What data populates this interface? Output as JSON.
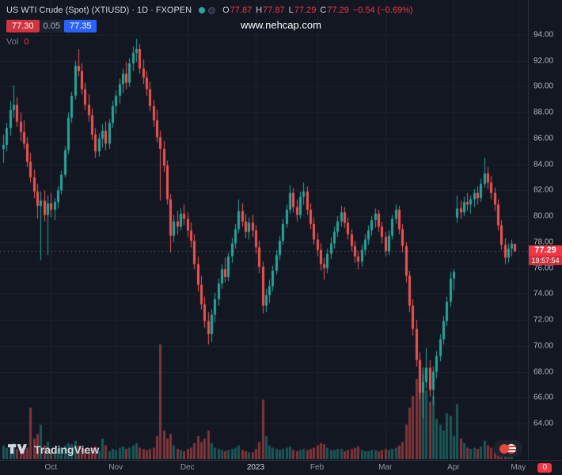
{
  "legend": {
    "title": "US WTI Crude (Spot) (XTIUSD) · 1D · FXOPEN",
    "o_label": "O",
    "o_value": "77.87",
    "h_label": "H",
    "h_value": "77.87",
    "l_label": "L",
    "l_value": "77.29",
    "c_label": "C",
    "c_value": "77.29",
    "change": "−0.54 (−0.69%)",
    "bid": "77.30",
    "spread": "0.05",
    "ask": "77.35",
    "vol_label": "Vol",
    "vol_value": "0"
  },
  "watermark": "www.nehcap.com",
  "price_label": {
    "value": "77.29",
    "countdown": "19:57:54"
  },
  "footer": {
    "logo_text": "TradingView",
    "events_badge": "0"
  },
  "colors": {
    "bg": "#131722",
    "grid": "#1e222d",
    "up": "#26a69a",
    "down": "#ef5350",
    "accent_red": "#f23645",
    "ask_blue": "#2962ff",
    "bid_red": "#cf3440",
    "axis_text": "#b2b5be",
    "title_text": "#d1d4dc",
    "watermark": "#ffffff"
  },
  "chart_data": {
    "type": "candlestick",
    "title": "US WTI Crude (Spot) (XTIUSD)",
    "interval": "1D",
    "exchange": "FXOPEN",
    "last_price": 77.29,
    "y_axis": {
      "max": 94,
      "min": 64,
      "tick_step": 2
    },
    "y_ticks": [
      "94.00",
      "92.00",
      "90.00",
      "88.00",
      "86.00",
      "84.00",
      "82.00",
      "80.00",
      "78.00",
      "76.00",
      "74.00",
      "72.00",
      "70.00",
      "68.00",
      "66.00",
      "64.00"
    ],
    "x_ticks": [
      {
        "label": "Oct",
        "index": 14,
        "major": false
      },
      {
        "label": "Nov",
        "index": 33,
        "major": false
      },
      {
        "label": "Dec",
        "index": 54,
        "major": false
      },
      {
        "label": "2023",
        "index": 74,
        "major": true
      },
      {
        "label": "Feb",
        "index": 92,
        "major": false
      },
      {
        "label": "Mar",
        "index": 112,
        "major": false
      },
      {
        "label": "Apr",
        "index": 132,
        "major": false
      },
      {
        "label": "May",
        "index": 151,
        "major": false
      }
    ],
    "candles_format": [
      "open",
      "high",
      "low",
      "close",
      "volume"
    ],
    "candles": [
      [
        85.2,
        86.3,
        84.1,
        85.5,
        12
      ],
      [
        85.5,
        87.2,
        85.0,
        86.8,
        10
      ],
      [
        86.8,
        88.9,
        86.2,
        88.2,
        11
      ],
      [
        88.2,
        90.1,
        87.6,
        88.6,
        14
      ],
      [
        88.6,
        89.2,
        86.9,
        87.3,
        9
      ],
      [
        87.3,
        88.0,
        85.8,
        86.5,
        8
      ],
      [
        86.5,
        87.4,
        85.2,
        85.6,
        7
      ],
      [
        85.6,
        86.1,
        83.8,
        84.2,
        10
      ],
      [
        84.2,
        84.9,
        82.6,
        83.0,
        45
      ],
      [
        83.0,
        83.6,
        81.4,
        81.9,
        18
      ],
      [
        81.9,
        82.5,
        79.8,
        80.8,
        22
      ],
      [
        80.8,
        81.9,
        76.6,
        81.2,
        30
      ],
      [
        81.2,
        82.0,
        79.6,
        80.1,
        12
      ],
      [
        80.1,
        81.6,
        77.0,
        81.0,
        15
      ],
      [
        81.0,
        81.8,
        79.9,
        80.5,
        9
      ],
      [
        80.5,
        81.4,
        79.7,
        81.1,
        8
      ],
      [
        81.1,
        82.3,
        80.6,
        82.0,
        9
      ],
      [
        82.0,
        83.5,
        81.7,
        83.2,
        10
      ],
      [
        83.2,
        85.4,
        83.0,
        85.1,
        12
      ],
      [
        85.1,
        88.0,
        84.8,
        87.6,
        14
      ],
      [
        87.6,
        89.6,
        87.2,
        89.3,
        13
      ],
      [
        89.3,
        92.0,
        89.0,
        91.6,
        16
      ],
      [
        91.6,
        92.9,
        90.8,
        91.2,
        12
      ],
      [
        91.2,
        91.8,
        89.4,
        89.8,
        10
      ],
      [
        89.8,
        90.3,
        88.2,
        88.6,
        9
      ],
      [
        88.6,
        89.4,
        87.3,
        87.8,
        8
      ],
      [
        87.8,
        88.3,
        85.9,
        86.3,
        10
      ],
      [
        86.3,
        86.8,
        84.5,
        85.0,
        11
      ],
      [
        85.0,
        86.4,
        84.6,
        86.0,
        7
      ],
      [
        86.0,
        87.1,
        85.3,
        86.6,
        18
      ],
      [
        86.6,
        87.3,
        85.1,
        85.6,
        12
      ],
      [
        85.6,
        87.5,
        85.2,
        87.2,
        7
      ],
      [
        87.2,
        88.9,
        86.8,
        88.5,
        9
      ],
      [
        88.5,
        89.7,
        87.9,
        89.3,
        8
      ],
      [
        89.3,
        90.6,
        88.7,
        90.2,
        10
      ],
      [
        90.2,
        91.4,
        89.5,
        91.0,
        11
      ],
      [
        91.0,
        91.9,
        89.8,
        90.3,
        9
      ],
      [
        90.3,
        92.2,
        90.0,
        91.8,
        10
      ],
      [
        91.8,
        93.1,
        91.2,
        92.6,
        12
      ],
      [
        92.6,
        93.7,
        91.9,
        92.9,
        14
      ],
      [
        92.9,
        93.3,
        91.0,
        91.4,
        10
      ],
      [
        91.4,
        92.1,
        90.2,
        90.7,
        9
      ],
      [
        90.7,
        91.2,
        89.3,
        89.8,
        8
      ],
      [
        89.8,
        90.4,
        88.1,
        88.5,
        9
      ],
      [
        88.5,
        89.0,
        86.9,
        87.4,
        10
      ],
      [
        87.4,
        88.2,
        85.7,
        86.1,
        20
      ],
      [
        86.1,
        86.6,
        81.2,
        85.2,
        100
      ],
      [
        85.2,
        85.8,
        83.4,
        83.9,
        25
      ],
      [
        83.9,
        84.3,
        80.9,
        81.3,
        18
      ],
      [
        81.3,
        81.7,
        77.2,
        78.5,
        22
      ],
      [
        78.5,
        80.1,
        78.0,
        79.6,
        12
      ],
      [
        79.6,
        80.4,
        78.6,
        79.2,
        9
      ],
      [
        79.2,
        80.6,
        78.9,
        80.2,
        8
      ],
      [
        80.2,
        80.9,
        79.3,
        79.8,
        7
      ],
      [
        79.8,
        80.3,
        78.4,
        78.9,
        9
      ],
      [
        78.9,
        79.5,
        77.6,
        78.1,
        10
      ],
      [
        78.1,
        78.6,
        75.9,
        76.3,
        14
      ],
      [
        76.3,
        76.9,
        74.2,
        74.7,
        20
      ],
      [
        74.7,
        75.4,
        72.8,
        73.2,
        15
      ],
      [
        73.2,
        73.8,
        71.4,
        71.9,
        18
      ],
      [
        71.9,
        72.6,
        70.1,
        70.9,
        25
      ],
      [
        70.9,
        72.8,
        70.3,
        72.4,
        14
      ],
      [
        72.4,
        74.1,
        71.8,
        73.6,
        10
      ],
      [
        73.6,
        75.2,
        73.1,
        74.8,
        9
      ],
      [
        74.8,
        76.3,
        74.4,
        75.9,
        8
      ],
      [
        75.9,
        76.8,
        74.9,
        75.3,
        7
      ],
      [
        75.3,
        77.2,
        75.0,
        76.9,
        8
      ],
      [
        76.9,
        78.3,
        76.4,
        77.9,
        9
      ],
      [
        77.9,
        79.4,
        77.5,
        79.0,
        10
      ],
      [
        79.0,
        81.3,
        78.7,
        80.4,
        12
      ],
      [
        80.4,
        81.0,
        79.2,
        79.6,
        8
      ],
      [
        79.6,
        80.2,
        78.3,
        78.8,
        7
      ],
      [
        78.8,
        79.9,
        78.2,
        79.5,
        6
      ],
      [
        79.5,
        80.1,
        78.4,
        78.9,
        6
      ],
      [
        78.9,
        79.3,
        77.1,
        77.6,
        9
      ],
      [
        77.6,
        78.1,
        75.6,
        76.1,
        15
      ],
      [
        76.1,
        76.5,
        72.5,
        73.1,
        52
      ],
      [
        73.1,
        74.4,
        72.6,
        73.9,
        20
      ],
      [
        73.9,
        75.1,
        73.3,
        74.6,
        12
      ],
      [
        74.6,
        76.2,
        74.2,
        75.8,
        10
      ],
      [
        75.8,
        77.4,
        75.5,
        77.0,
        9
      ],
      [
        77.0,
        78.5,
        76.6,
        78.1,
        8
      ],
      [
        78.1,
        79.8,
        77.8,
        79.4,
        9
      ],
      [
        79.4,
        80.9,
        79.1,
        80.5,
        10
      ],
      [
        80.5,
        82.4,
        80.2,
        81.8,
        11
      ],
      [
        81.8,
        82.2,
        80.3,
        80.7,
        8
      ],
      [
        80.7,
        81.3,
        79.6,
        80.1,
        7
      ],
      [
        80.1,
        81.9,
        79.8,
        81.5,
        8
      ],
      [
        81.5,
        82.6,
        80.9,
        81.9,
        9
      ],
      [
        81.9,
        82.3,
        80.1,
        80.5,
        8
      ],
      [
        80.5,
        81.0,
        79.0,
        79.4,
        9
      ],
      [
        79.4,
        79.9,
        77.8,
        78.2,
        10
      ],
      [
        78.2,
        78.7,
        76.9,
        77.4,
        12
      ],
      [
        77.4,
        77.9,
        75.8,
        76.3,
        14
      ],
      [
        76.3,
        76.8,
        75.1,
        76.0,
        13
      ],
      [
        76.0,
        77.5,
        75.6,
        77.1,
        10
      ],
      [
        77.1,
        78.4,
        76.7,
        77.9,
        8
      ],
      [
        77.9,
        79.2,
        77.5,
        78.8,
        8
      ],
      [
        78.8,
        80.0,
        78.4,
        79.6,
        9
      ],
      [
        79.6,
        80.8,
        79.2,
        80.3,
        9
      ],
      [
        80.3,
        80.7,
        79.1,
        79.5,
        7
      ],
      [
        79.5,
        79.9,
        78.2,
        78.6,
        8
      ],
      [
        78.6,
        79.0,
        77.3,
        77.7,
        9
      ],
      [
        77.7,
        78.1,
        76.4,
        76.9,
        10
      ],
      [
        76.9,
        77.3,
        75.9,
        76.5,
        11
      ],
      [
        76.5,
        77.8,
        76.1,
        77.4,
        8
      ],
      [
        77.4,
        78.6,
        77.0,
        78.2,
        7
      ],
      [
        78.2,
        79.3,
        77.8,
        78.9,
        7
      ],
      [
        78.9,
        80.0,
        78.5,
        79.7,
        8
      ],
      [
        79.7,
        80.6,
        79.1,
        80.2,
        8
      ],
      [
        80.2,
        80.5,
        78.8,
        79.2,
        7
      ],
      [
        79.2,
        79.6,
        77.9,
        78.4,
        8
      ],
      [
        78.4,
        78.8,
        76.9,
        77.3,
        9
      ],
      [
        77.3,
        78.9,
        77.0,
        78.5,
        8
      ],
      [
        78.5,
        80.1,
        78.2,
        79.8,
        9
      ],
      [
        79.8,
        80.9,
        79.4,
        80.5,
        10
      ],
      [
        80.5,
        80.8,
        78.6,
        79.0,
        12
      ],
      [
        79.0,
        79.4,
        77.2,
        77.7,
        15
      ],
      [
        77.7,
        78.0,
        74.9,
        75.4,
        30
      ],
      [
        75.4,
        75.8,
        72.6,
        73.1,
        45
      ],
      [
        73.1,
        73.6,
        70.8,
        71.3,
        55
      ],
      [
        71.3,
        72.0,
        68.4,
        68.9,
        70
      ],
      [
        68.9,
        69.5,
        65.9,
        66.4,
        85
      ],
      [
        66.4,
        67.8,
        64.4,
        67.2,
        80
      ],
      [
        67.2,
        69.8,
        66.7,
        68.3,
        60
      ],
      [
        68.3,
        68.9,
        66.1,
        66.6,
        50
      ],
      [
        66.6,
        68.4,
        65.4,
        68.0,
        55
      ],
      [
        68.0,
        69.6,
        67.5,
        69.2,
        35
      ],
      [
        69.2,
        70.9,
        68.8,
        70.5,
        30
      ],
      [
        70.5,
        72.3,
        70.1,
        71.9,
        25
      ],
      [
        71.9,
        73.8,
        71.5,
        73.4,
        40
      ],
      [
        73.4,
        75.7,
        73.0,
        75.2,
        38
      ],
      [
        75.2,
        75.9,
        74.3,
        75.7,
        20
      ],
      [
        79.9,
        81.6,
        79.5,
        80.6,
        48
      ],
      [
        80.6,
        81.2,
        79.8,
        80.3,
        18
      ],
      [
        80.3,
        81.5,
        80.0,
        81.1,
        14
      ],
      [
        81.1,
        81.8,
        80.4,
        80.9,
        10
      ],
      [
        80.9,
        81.6,
        80.2,
        81.3,
        9
      ],
      [
        81.3,
        82.1,
        80.7,
        81.8,
        10
      ],
      [
        81.8,
        82.3,
        80.9,
        81.4,
        9
      ],
      [
        81.4,
        82.9,
        81.1,
        82.5,
        11
      ],
      [
        82.5,
        84.5,
        82.2,
        83.3,
        16
      ],
      [
        83.3,
        83.8,
        82.1,
        82.6,
        12
      ],
      [
        82.6,
        83.1,
        81.3,
        81.8,
        10
      ],
      [
        81.8,
        82.2,
        80.4,
        80.9,
        11
      ],
      [
        80.9,
        81.3,
        78.9,
        79.3,
        14
      ],
      [
        79.3,
        79.7,
        77.4,
        77.8,
        16
      ],
      [
        77.8,
        78.3,
        76.3,
        76.8,
        13
      ],
      [
        76.8,
        77.9,
        76.4,
        77.5,
        9
      ],
      [
        77.5,
        78.2,
        76.9,
        77.87,
        7
      ],
      [
        77.87,
        77.87,
        77.29,
        77.29,
        0
      ]
    ]
  }
}
